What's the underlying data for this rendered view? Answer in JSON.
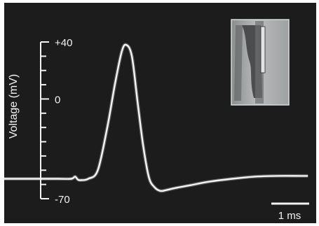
{
  "chart_data": {
    "type": "line",
    "title": "",
    "xlabel": "",
    "ylabel": "Voltage (mV)",
    "y_ticks": [
      "+40",
      "0",
      "-70"
    ],
    "y_tick_values": [
      40,
      0,
      -70
    ],
    "ylim": [
      -70,
      40
    ],
    "xlim_ms": [
      -3.4,
      4.8
    ],
    "scale_bar": {
      "label": "1 ms",
      "length_ms": 1
    },
    "series": [
      {
        "values_x_ms": [
          -3.4,
          -2.6,
          -1.8,
          -1.45,
          -1.35,
          -1.28,
          -1.2,
          -1.0,
          -0.75,
          -0.5,
          -0.3,
          -0.12,
          0.0,
          0.15,
          0.3,
          0.45,
          0.6,
          0.75,
          0.9,
          1.05,
          1.3,
          1.7,
          2.2,
          2.8,
          3.4,
          4.0,
          4.6,
          4.8
        ],
        "values_y_mV": [
          -56,
          -56,
          -56,
          -56,
          -54.5,
          -56.5,
          -57,
          -56,
          -50,
          -20,
          10,
          33,
          38,
          30,
          -2,
          -33,
          -55,
          -62,
          -64.5,
          -64,
          -62.5,
          -60.5,
          -58,
          -56,
          -54.5,
          -54,
          -54,
          -54
        ]
      }
    ],
    "line_color": "#f4f4f4",
    "grid": false,
    "inset": "micrograph of electrode on axon (top-right)"
  }
}
